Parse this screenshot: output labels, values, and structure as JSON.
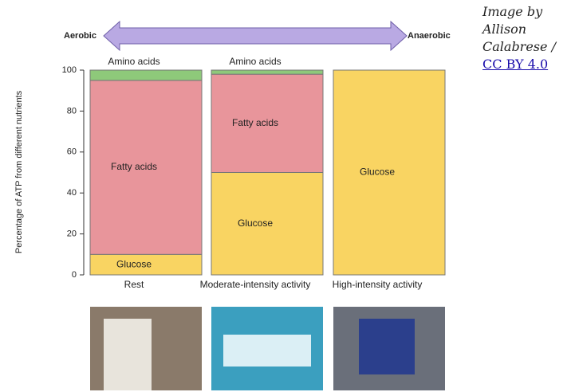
{
  "chart_data": {
    "type": "stacked_bar",
    "direction_left": "Aerobic",
    "direction_right": "Anaerobic",
    "ylabel": "Percentage of ATP from different nutrients",
    "categories": [
      "Rest",
      "Moderate-intensity activity",
      "High-intensity activity"
    ],
    "series": [
      {
        "name": "Glucose",
        "color": "#f9d462",
        "values": [
          10,
          50,
          100
        ]
      },
      {
        "name": "Fatty acids",
        "color": "#e8959b",
        "values": [
          85,
          48,
          0
        ]
      },
      {
        "name": "Amino acids",
        "color": "#8ec97a",
        "values": [
          5,
          2,
          0
        ]
      }
    ],
    "ylim": [
      0,
      100
    ],
    "yticks": [
      0,
      20,
      40,
      60,
      80,
      100
    ]
  },
  "attribution": {
    "text": "Image by Allison Calabrese / ",
    "link": "CC BY 4.0"
  }
}
